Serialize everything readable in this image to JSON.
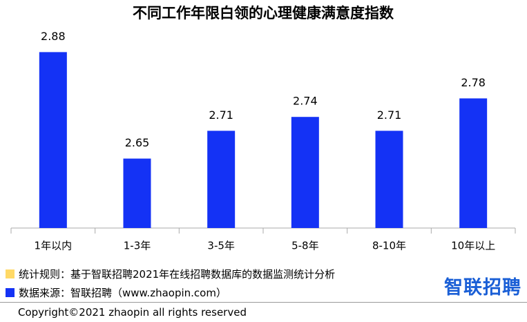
{
  "chart_data": {
    "type": "bar",
    "title": "不同工作年限白领的心理健康满意度指数",
    "categories": [
      "1年以内",
      "1-3年",
      "3-5年",
      "5-8年",
      "8-10年",
      "10年以上"
    ],
    "values": [
      2.88,
      2.65,
      2.71,
      2.74,
      2.71,
      2.78
    ],
    "color": "#1432f5",
    "ylim": [
      2.5,
      2.9
    ]
  },
  "footer": {
    "rule": "统计规则：基于智联招聘2021年在线招聘数据库的数据监测统计分析",
    "source": "数据来源：智联招聘（www.zhaopin.com）",
    "copyright": "Copyright©2021 zhaopin all rights reserved",
    "logo": "智联招聘"
  }
}
